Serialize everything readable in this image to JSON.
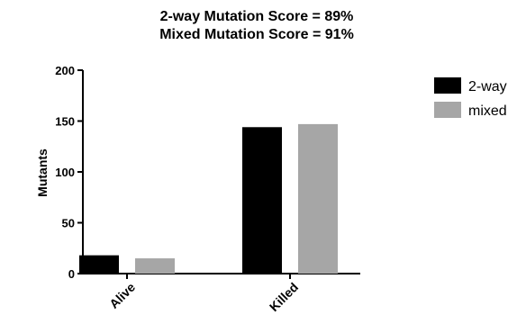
{
  "chart_data": {
    "type": "bar",
    "title": [
      "2-way Mutation Score = 89%",
      "Mixed Mutation Score = 91%"
    ],
    "xlabel": "",
    "ylabel": "Mutants",
    "categories": [
      "Alive",
      "Killed"
    ],
    "series": [
      {
        "name": "2-way",
        "values": [
          18,
          144
        ],
        "color": "#000000"
      },
      {
        "name": "mixed",
        "values": [
          15,
          147
        ],
        "color": "#a6a6a6"
      }
    ],
    "ylim": [
      0,
      200
    ],
    "yticks": [
      0,
      50,
      100,
      150,
      200
    ],
    "grid": false,
    "legend": "top-right"
  }
}
